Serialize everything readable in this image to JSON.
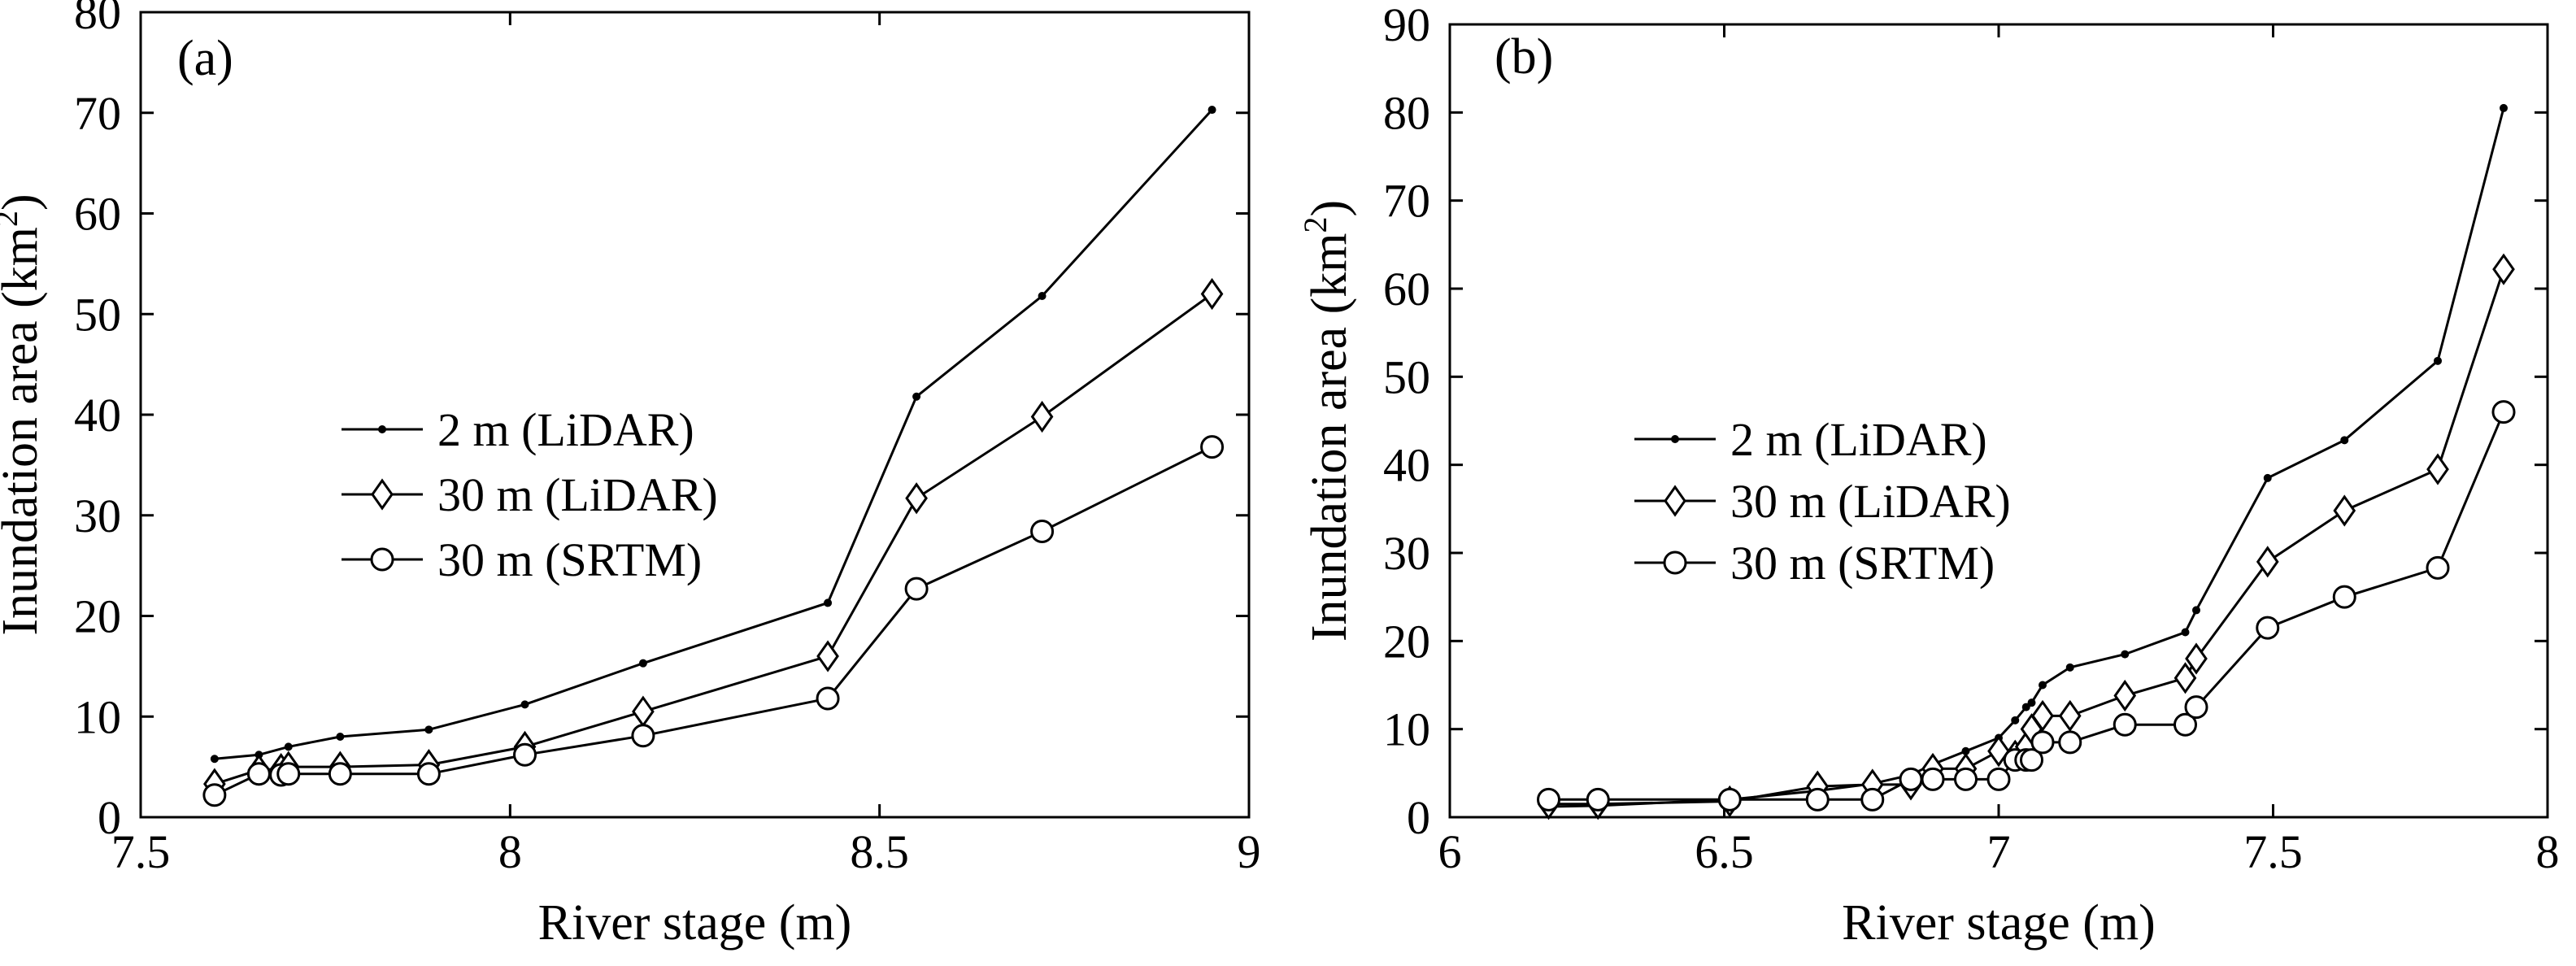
{
  "chart_data": [
    {
      "type": "line",
      "panel_label": "(a)",
      "xlabel": "River stage (m)",
      "ylabel": "Inundation area (km",
      "ylabel_sup": "2",
      "ylabel_close": ")",
      "xlim": [
        7.5,
        9
      ],
      "ylim": [
        0,
        80
      ],
      "xticks": [
        7.5,
        8,
        8.5,
        9
      ],
      "xtick_labels": [
        "7.5",
        "8",
        "8.5",
        "9"
      ],
      "yticks": [
        0,
        10,
        20,
        30,
        40,
        50,
        60,
        70,
        80
      ],
      "ytick_labels": [
        "0",
        "10",
        "20",
        "30",
        "40",
        "50",
        "60",
        "70",
        "80"
      ],
      "legend_placement": "center-left",
      "series": [
        {
          "name": "2 m (LiDAR)",
          "marker": "dot",
          "x": [
            7.6,
            7.66,
            7.7,
            7.77,
            7.89,
            8.02,
            8.18,
            8.43,
            8.55,
            8.72,
            8.95
          ],
          "y": [
            5.8,
            6.2,
            7.0,
            8.0,
            8.7,
            11.2,
            15.3,
            21.3,
            41.8,
            51.8,
            70.3
          ]
        },
        {
          "name": "30 m (LiDAR)",
          "marker": "diamond",
          "x": [
            7.6,
            7.66,
            7.69,
            7.7,
            7.77,
            7.89,
            8.02,
            8.18,
            8.43,
            8.55,
            8.72,
            8.95
          ],
          "y": [
            3.3,
            4.7,
            4.8,
            5.0,
            5.0,
            5.2,
            7.0,
            10.5,
            16.0,
            31.7,
            39.8,
            52.0
          ]
        },
        {
          "name": "30 m (SRTM)",
          "marker": "circle",
          "x": [
            7.6,
            7.66,
            7.69,
            7.7,
            7.77,
            7.89,
            8.02,
            8.18,
            8.43,
            8.55,
            8.72,
            8.95
          ],
          "y": [
            2.2,
            4.3,
            4.2,
            4.3,
            4.3,
            4.3,
            6.2,
            8.1,
            11.8,
            22.7,
            28.4,
            36.8
          ]
        }
      ]
    },
    {
      "type": "line",
      "panel_label": "(b)",
      "xlabel": "River stage (m)",
      "ylabel": "Inundation area (km",
      "ylabel_sup": "2",
      "ylabel_close": ")",
      "xlim": [
        6,
        8
      ],
      "ylim": [
        0,
        90
      ],
      "xticks": [
        6,
        6.5,
        7,
        7.5,
        8
      ],
      "xtick_labels": [
        "6",
        "6.5",
        "7",
        "7.5",
        "8"
      ],
      "yticks": [
        0,
        10,
        20,
        30,
        40,
        50,
        60,
        70,
        80,
        90
      ],
      "ytick_labels": [
        "0",
        "10",
        "20",
        "30",
        "40",
        "50",
        "60",
        "70",
        "80",
        "90"
      ],
      "legend_placement": "center-left",
      "series": [
        {
          "name": "2 m (LiDAR)",
          "marker": "dot",
          "x": [
            6.18,
            6.27,
            6.51,
            6.67,
            6.77,
            6.84,
            6.88,
            6.94,
            7.0,
            7.03,
            7.05,
            7.06,
            7.08,
            7.13,
            7.23,
            7.34,
            7.36,
            7.49,
            7.63,
            7.8,
            7.92
          ],
          "y": [
            1.2,
            1.3,
            2.0,
            3.0,
            3.8,
            4.8,
            6.0,
            7.5,
            9.0,
            11.0,
            12.5,
            13.0,
            15.0,
            17.0,
            18.5,
            21.0,
            23.5,
            38.5,
            42.8,
            51.8,
            80.5
          ]
        },
        {
          "name": "30 m (LiDAR)",
          "marker": "diamond",
          "x": [
            6.18,
            6.27,
            6.51,
            6.67,
            6.77,
            6.84,
            6.88,
            6.94,
            7.0,
            7.03,
            7.05,
            7.06,
            7.08,
            7.13,
            7.23,
            7.34,
            7.36,
            7.49,
            7.63,
            7.8,
            7.92
          ],
          "y": [
            1.5,
            1.5,
            1.8,
            3.5,
            3.7,
            3.7,
            5.5,
            5.5,
            7.5,
            7.0,
            8.0,
            10.0,
            11.5,
            11.5,
            13.8,
            15.8,
            18.0,
            29.0,
            34.8,
            39.5,
            62.2
          ]
        },
        {
          "name": "30 m (SRTM)",
          "marker": "circle",
          "x": [
            6.18,
            6.27,
            6.51,
            6.67,
            6.77,
            6.84,
            6.88,
            6.94,
            7.0,
            7.03,
            7.05,
            7.06,
            7.08,
            7.13,
            7.23,
            7.34,
            7.36,
            7.49,
            7.63,
            7.8,
            7.92
          ],
          "y": [
            2.0,
            2.0,
            2.0,
            2.0,
            2.0,
            4.3,
            4.3,
            4.3,
            4.3,
            6.5,
            6.5,
            6.5,
            8.5,
            8.5,
            10.5,
            10.5,
            12.5,
            21.5,
            25.0,
            28.3,
            46.0
          ]
        }
      ]
    }
  ]
}
